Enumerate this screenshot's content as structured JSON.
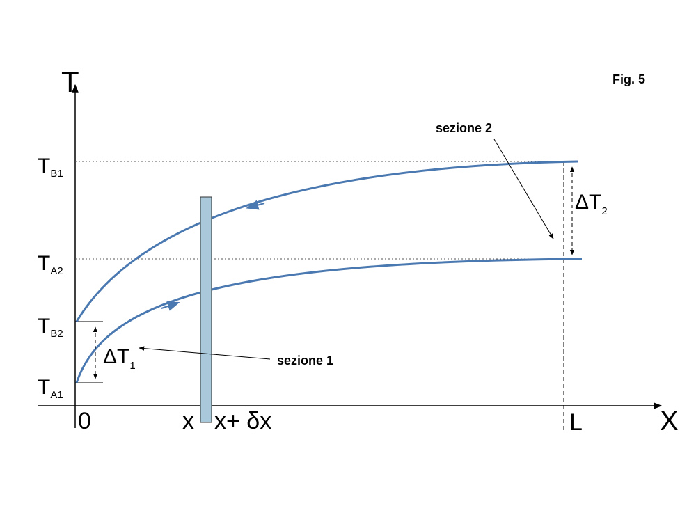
{
  "figure_label": "Fig. 5",
  "axes": {
    "y_label": "T",
    "x_label": "X",
    "origin": "0",
    "x_position": "x",
    "x_plus": "x+ δx",
    "length": "L"
  },
  "levels": [
    {
      "main": "T",
      "sub": "B1"
    },
    {
      "main": "T",
      "sub": "A2"
    },
    {
      "main": "T",
      "sub": "B2"
    },
    {
      "main": "T",
      "sub": "A1"
    }
  ],
  "deltas": [
    {
      "main": "ΔT",
      "sub": "1"
    },
    {
      "main": "ΔT",
      "sub": "2"
    }
  ],
  "sections": [
    "sezione 1",
    "sezione 2"
  ]
}
